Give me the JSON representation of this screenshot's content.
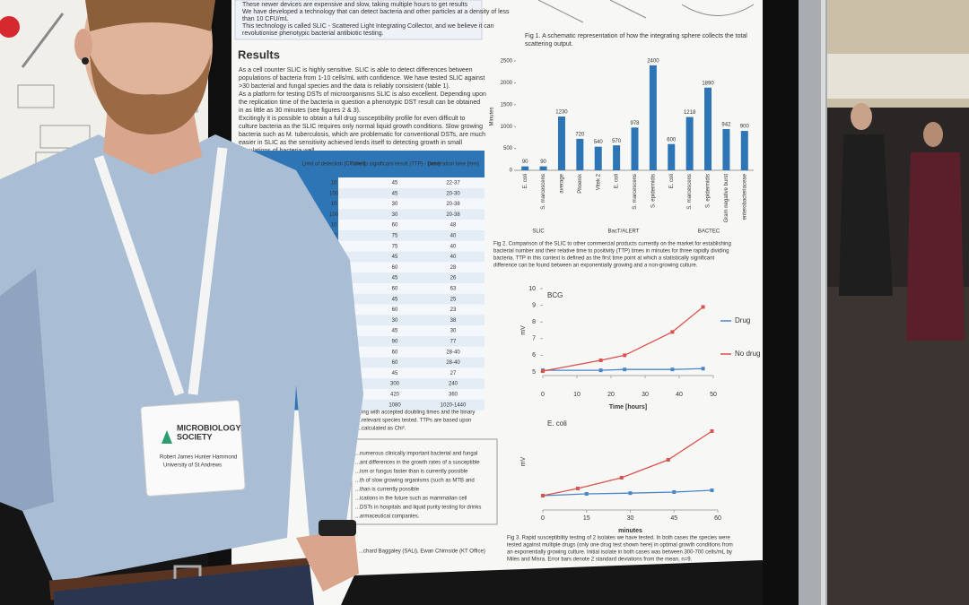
{
  "poster": {
    "intro_lines": [
      "These newer devices are expensive and slow, taking multiple hours to get results",
      "We have developed a technology that can detect bacteria and other particles at a density of less",
      "than 10 CFU/mL",
      "This technology is called SLIC - Scattered Light Integrating Collector, and we believe it can",
      "revolutionise phenotypic bacterial antibiotic testing."
    ],
    "results_heading": "Results",
    "results_text": [
      "As a cell counter SLIC is highly sensitive. SLIC is able to detect differences between",
      "populations of bacteria from 1-10 cells/mL with confidence. We have tested SLIC against",
      ">30 bacterial and fungal species and the data is reliably consistent (table 1).",
      "As a platform for testing DSTs of microorganisms SLIC is also excellent. Depending upon",
      "the replication time of the bacteria in question a phenotypic DST result can be obtained",
      "in as little as 30 minutes (see figures 2 & 3).",
      "Excitingly it is possible to obtain a full drug susceptibility profile for even difficult to",
      "culture bacteria as the SLIC requires only normal liquid growth conditions. Slow growing",
      "bacteria such as M. tuberculosis, which are problematic for conventional DSTs, are much",
      "easier in SLIC as the sensitivity achieved lends itself to detecting growth in small",
      "populations of bacteria well."
    ],
    "table": {
      "headers": [
        "Limit of detection [CFU/ml]",
        "Time to significant result (TTP) - [min]",
        "Generation time [min]"
      ],
      "rows": [
        [
          "10",
          "45",
          "22-37"
        ],
        [
          "100",
          "45",
          "20-30"
        ],
        [
          "10",
          "30",
          "20-38"
        ],
        [
          "100",
          "30",
          "20-38"
        ],
        [
          "10",
          "60",
          "48"
        ],
        [
          "10",
          "75",
          "40"
        ],
        [
          "10",
          "75",
          "40"
        ],
        [
          "100",
          "45",
          "40"
        ],
        [
          "10",
          "60",
          "28"
        ],
        [
          "10",
          "45",
          "26"
        ],
        [
          "100",
          "60",
          "63"
        ],
        [
          "100",
          "45",
          "25"
        ],
        [
          "10",
          "60",
          "23"
        ],
        [
          "10",
          "30",
          "38"
        ],
        [
          "10",
          "45",
          "30"
        ],
        [
          "100",
          "90",
          "77"
        ],
        [
          "10",
          "60",
          "28-40"
        ],
        [
          "10",
          "60",
          "28-40"
        ],
        [
          "100",
          "45",
          "27"
        ],
        [
          "10",
          "300",
          "240"
        ],
        [
          "10",
          "420",
          "360"
        ],
        [
          "10",
          "1080",
          "1020-1440"
        ]
      ]
    },
    "table_note": [
      "...ing with accepted doubling times and the binary",
      "...relevant species tested. TTPs are based upon",
      "...calculated as Chi²."
    ],
    "conclusions": [
      "...numerous clinically important bacterial and fungal",
      "...ant differences in the growth rates of a susceptible",
      "...ism or fungus faster than is currently possible",
      "...th of slow growing organisms (such as MTB and",
      "...than is currently possible",
      "...ications in the future such as mammalian cell",
      "...DSTs in hospitals and liquid purity testing for drinks",
      "...armaceutical companies."
    ],
    "acknowledgement": "...chard Baggaley (SALi), Ewan Chirnside (KT Office)",
    "fig1_caption": [
      "Fig 1. A schematic representation of how the integrating sphere collects the total",
      "scattering output."
    ],
    "bar_chart": {
      "type": "bar",
      "y_label": "Minutes",
      "categories": [
        "E. coli",
        "S. marcescens",
        "average",
        "Phoenix",
        "Vitek 2",
        "E. coli",
        "S. marcescens",
        "S. epidermidis",
        "E. coli",
        "S. marcescens",
        "S. epidermidis",
        "Gram negative burst",
        "enterobacteriaceae"
      ],
      "values": [
        90,
        90,
        1230,
        720,
        540,
        570,
        978,
        2400,
        600,
        1218,
        1890,
        942,
        900
      ],
      "color": "#2e75b6",
      "ylim": [
        0,
        2500
      ],
      "yticks": [
        0,
        500,
        1000,
        1500,
        2000,
        2500
      ],
      "groups": [
        "SLIC",
        "BacT/ALERT",
        "BACTEC"
      ]
    },
    "fig2_caption": [
      "Fig 2. Comparison of the SLIC to other commercial products currently on the market for establishing",
      "bacterial number and their relative time to positivity (TTP) times in minutes for three rapidly dividing",
      "bacteria. TTP in this context is defined as the first time point at which a statistically significant",
      "difference can be found between an exponentially growing and a non-growing culture."
    ],
    "line_charts": [
      {
        "type": "line",
        "title": "BCG",
        "x_label": "Time [hours]",
        "y_label": "mV",
        "xlim": [
          0,
          50
        ],
        "xticks": [
          0,
          10,
          20,
          30,
          40,
          50
        ],
        "ylim": [
          5,
          10
        ],
        "yticks": [
          5,
          6,
          7,
          8,
          9,
          10
        ],
        "series": [
          {
            "name": "Drug",
            "color": "#4a86c8",
            "x": [
              0,
              17,
              24,
              38,
              47
            ],
            "values": [
              5.1,
              5.1,
              5.15,
              5.15,
              5.2
            ]
          },
          {
            "name": "No drug",
            "color": "#d9534f",
            "x": [
              0,
              17,
              24,
              38,
              47
            ],
            "values": [
              5.05,
              5.7,
              6,
              7.4,
              8.9
            ]
          }
        ]
      },
      {
        "type": "line",
        "title": "E. coli",
        "x_label": "minutes",
        "y_label": "mV",
        "xlim": [
          0,
          60
        ],
        "xticks": [
          0,
          15,
          30,
          45,
          60
        ],
        "ylim": [
          0,
          25
        ],
        "series": [
          {
            "color": "#4a86c8",
            "x": [
              0,
              15,
              30,
              45,
              58
            ],
            "values": [
              3,
              3.5,
              3.7,
              4,
              4.5
            ]
          },
          {
            "color": "#d9534f",
            "x": [
              0,
              12,
              27,
              43,
              58
            ],
            "values": [
              3,
              5,
              8,
              13,
              21
            ]
          }
        ]
      }
    ],
    "fig3_caption": [
      "Fig 3. Rapid susceptibility testing of 2 isolates we have tested. In both cases the species were",
      "tested against multiple drugs (only one drug test shown here) in optimal growth conditions from",
      "an exponentially growing culture. Initial isolate in both cases was between 300-700 cells/mL by",
      "Miles and Misra. Error bars denote 2 standard deviations from the mean, n=9."
    ]
  },
  "badge": {
    "org": [
      "MICROBIOLOGY",
      "SOCIETY"
    ],
    "name": "Robert James Hunter Hammond",
    "affiliation": "University of St Andrews"
  }
}
